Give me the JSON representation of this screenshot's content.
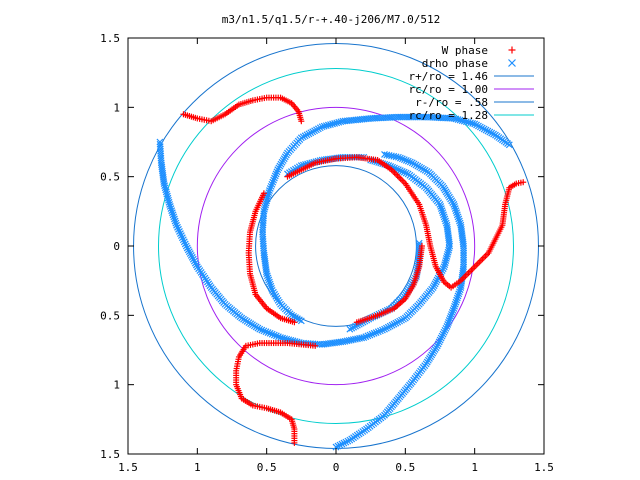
{
  "chart_data": {
    "type": "scatter",
    "title": "m3/n1.5/q1.5/r-+.40-j206/M7.0/512",
    "xlabel": "",
    "ylabel": "",
    "xlim": [
      -1.5,
      1.5
    ],
    "ylim": [
      -1.5,
      1.5
    ],
    "x_ticks": [
      {
        "value": -1.5,
        "label": "1.5"
      },
      {
        "value": -1.0,
        "label": "1"
      },
      {
        "value": -0.5,
        "label": "0.5"
      },
      {
        "value": 0.0,
        "label": "0"
      },
      {
        "value": 0.5,
        "label": "0.5"
      },
      {
        "value": 1.0,
        "label": "1"
      },
      {
        "value": 1.5,
        "label": "1.5"
      }
    ],
    "y_ticks": [
      {
        "value": 1.5,
        "label": "1.5"
      },
      {
        "value": 1.0,
        "label": "1"
      },
      {
        "value": 0.5,
        "label": "0.5"
      },
      {
        "value": 0.0,
        "label": "0"
      },
      {
        "value": -0.5,
        "label": "0.5"
      },
      {
        "value": -1.0,
        "label": "1"
      },
      {
        "value": -1.5,
        "label": "1.5"
      }
    ],
    "grid": false,
    "legend_position": "top-right",
    "series": [
      {
        "name": "W phase",
        "marker": "+",
        "color": "#ff0000",
        "arms": [
          [
            [
              -1.1,
              0.95
            ],
            [
              -1.0,
              0.92
            ],
            [
              -0.9,
              0.9
            ],
            [
              -0.8,
              0.95
            ],
            [
              -0.7,
              1.02
            ],
            [
              -0.6,
              1.05
            ],
            [
              -0.5,
              1.07
            ],
            [
              -0.4,
              1.07
            ],
            [
              -0.32,
              1.03
            ],
            [
              -0.27,
              0.97
            ],
            [
              -0.25,
              0.9
            ]
          ],
          [
            [
              1.35,
              0.46
            ],
            [
              1.3,
              0.45
            ],
            [
              1.25,
              0.42
            ],
            [
              1.22,
              0.3
            ],
            [
              1.2,
              0.15
            ],
            [
              1.15,
              0.05
            ],
            [
              1.1,
              -0.05
            ],
            [
              1.0,
              -0.15
            ],
            [
              0.9,
              -0.25
            ],
            [
              0.83,
              -0.3
            ],
            [
              0.78,
              -0.26
            ],
            [
              0.72,
              -0.15
            ],
            [
              0.68,
              0.0
            ],
            [
              0.65,
              0.15
            ],
            [
              0.6,
              0.3
            ],
            [
              0.5,
              0.45
            ],
            [
              0.4,
              0.55
            ],
            [
              0.3,
              0.62
            ],
            [
              0.15,
              0.64
            ],
            [
              0.0,
              0.63
            ],
            [
              -0.15,
              0.6
            ],
            [
              -0.25,
              0.55
            ],
            [
              -0.35,
              0.5
            ]
          ],
          [
            [
              -0.3,
              -1.42
            ],
            [
              -0.3,
              -1.32
            ],
            [
              -0.32,
              -1.25
            ],
            [
              -0.4,
              -1.2
            ],
            [
              -0.5,
              -1.17
            ],
            [
              -0.6,
              -1.15
            ],
            [
              -0.68,
              -1.1
            ],
            [
              -0.72,
              -1.0
            ],
            [
              -0.72,
              -0.9
            ],
            [
              -0.7,
              -0.8
            ],
            [
              -0.65,
              -0.72
            ],
            [
              -0.55,
              -0.7
            ],
            [
              -0.45,
              -0.7
            ],
            [
              -0.35,
              -0.7
            ],
            [
              -0.25,
              -0.71
            ],
            [
              -0.15,
              -0.72
            ]
          ],
          [
            [
              -0.3,
              -0.55
            ],
            [
              -0.4,
              -0.52
            ],
            [
              -0.5,
              -0.45
            ],
            [
              -0.58,
              -0.35
            ],
            [
              -0.62,
              -0.2
            ],
            [
              -0.63,
              -0.05
            ],
            [
              -0.62,
              0.1
            ],
            [
              -0.58,
              0.25
            ],
            [
              -0.52,
              0.38
            ]
          ],
          [
            [
              0.15,
              -0.55
            ],
            [
              0.3,
              -0.5
            ],
            [
              0.42,
              -0.45
            ],
            [
              0.5,
              -0.38
            ],
            [
              0.56,
              -0.28
            ],
            [
              0.6,
              -0.15
            ],
            [
              0.62,
              0.0
            ]
          ]
        ]
      },
      {
        "name": "drho phase",
        "marker": "x",
        "color": "#1e90ff",
        "arms": [
          [
            [
              -1.27,
              0.75
            ],
            [
              -1.26,
              0.6
            ],
            [
              -1.24,
              0.45
            ],
            [
              -1.2,
              0.3
            ],
            [
              -1.15,
              0.15
            ],
            [
              -1.08,
              0.0
            ],
            [
              -1.0,
              -0.15
            ],
            [
              -0.9,
              -0.3
            ],
            [
              -0.8,
              -0.42
            ],
            [
              -0.68,
              -0.52
            ],
            [
              -0.55,
              -0.6
            ],
            [
              -0.4,
              -0.66
            ],
            [
              -0.25,
              -0.7
            ],
            [
              -0.1,
              -0.71
            ],
            [
              0.05,
              -0.69
            ],
            [
              0.2,
              -0.66
            ],
            [
              0.35,
              -0.6
            ],
            [
              0.5,
              -0.52
            ],
            [
              0.6,
              -0.42
            ],
            [
              0.7,
              -0.3
            ],
            [
              0.78,
              -0.15
            ],
            [
              0.82,
              0.0
            ],
            [
              0.8,
              0.15
            ],
            [
              0.75,
              0.3
            ],
            [
              0.65,
              0.42
            ],
            [
              0.52,
              0.52
            ],
            [
              0.38,
              0.58
            ],
            [
              0.25,
              0.62
            ]
          ],
          [
            [
              1.25,
              0.73
            ],
            [
              1.15,
              0.8
            ],
            [
              1.0,
              0.88
            ],
            [
              0.85,
              0.92
            ],
            [
              0.65,
              0.93
            ],
            [
              0.45,
              0.93
            ],
            [
              0.25,
              0.92
            ],
            [
              0.05,
              0.9
            ],
            [
              -0.1,
              0.86
            ],
            [
              -0.25,
              0.78
            ],
            [
              -0.35,
              0.67
            ],
            [
              -0.42,
              0.55
            ],
            [
              -0.48,
              0.4
            ],
            [
              -0.52,
              0.25
            ],
            [
              -0.53,
              0.1
            ],
            [
              -0.52,
              -0.05
            ],
            [
              -0.5,
              -0.2
            ],
            [
              -0.46,
              -0.32
            ],
            [
              -0.4,
              -0.42
            ],
            [
              -0.32,
              -0.5
            ],
            [
              -0.25,
              -0.54
            ]
          ],
          [
            [
              0.0,
              -1.45
            ],
            [
              0.1,
              -1.4
            ],
            [
              0.22,
              -1.32
            ],
            [
              0.35,
              -1.22
            ],
            [
              0.45,
              -1.1
            ],
            [
              0.55,
              -0.98
            ],
            [
              0.65,
              -0.85
            ],
            [
              0.73,
              -0.72
            ],
            [
              0.8,
              -0.58
            ],
            [
              0.85,
              -0.45
            ],
            [
              0.9,
              -0.3
            ],
            [
              0.92,
              -0.15
            ],
            [
              0.92,
              0.0
            ],
            [
              0.9,
              0.15
            ],
            [
              0.85,
              0.3
            ],
            [
              0.77,
              0.43
            ],
            [
              0.67,
              0.53
            ],
            [
              0.55,
              0.6
            ],
            [
              0.45,
              0.64
            ],
            [
              0.35,
              0.66
            ]
          ],
          [
            [
              -0.35,
              0.52
            ],
            [
              -0.25,
              0.58
            ],
            [
              -0.1,
              0.62
            ],
            [
              0.05,
              0.64
            ],
            [
              0.2,
              0.64
            ]
          ],
          [
            [
              0.1,
              -0.6
            ],
            [
              0.25,
              -0.52
            ],
            [
              0.4,
              -0.45
            ],
            [
              0.5,
              -0.35
            ],
            [
              0.58,
              -0.22
            ],
            [
              0.6,
              -0.1
            ],
            [
              0.6,
              0.02
            ]
          ]
        ]
      }
    ],
    "circles": [
      {
        "name": "r+/ro = 1.46",
        "radius": 1.46,
        "color": "#1874cd"
      },
      {
        "name": "rc/ro = 1.00",
        "radius": 1.0,
        "color": "#a020f0"
      },
      {
        "name": "r-/ro = .58",
        "radius": 0.58,
        "color": "#1874cd"
      },
      {
        "name": "rc/ro = 1.28",
        "radius": 1.28,
        "color": "#00cdcd"
      }
    ]
  }
}
